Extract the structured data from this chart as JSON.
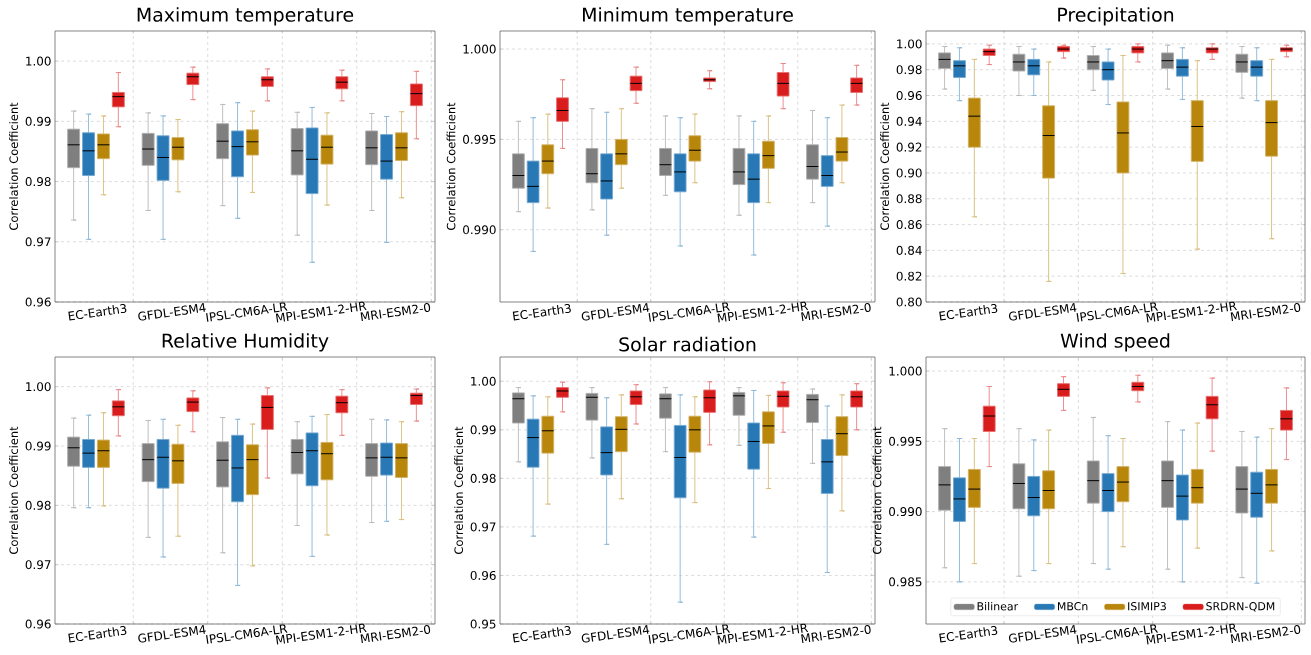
{
  "chart_data": [
    {
      "type": "box",
      "title": "Maximum temperature",
      "ylabel": "Correlation Coefficient",
      "categories": [
        "EC-Earth3",
        "GFDL-ESM4",
        "IPSL-CM6A-LR",
        "MPI-ESM1-2-HR",
        "MRI-ESM2-0"
      ],
      "ylim": [
        0.96,
        1.005
      ],
      "yticks": [
        0.96,
        0.97,
        0.98,
        0.99,
        {
          "value": 1.0,
          "label": "1.00"
        }
      ],
      "grid": true,
      "series": [
        {
          "color": "#7f7f7f",
          "boxes": [
            {
              "low": 0.9736,
              "q1": 0.9823,
              "median": 0.9861,
              "q3": 0.9887,
              "high": 0.9917
            },
            {
              "low": 0.9752,
              "q1": 0.9827,
              "median": 0.9854,
              "q3": 0.988,
              "high": 0.9914
            },
            {
              "low": 0.976,
              "q1": 0.9838,
              "median": 0.9867,
              "q3": 0.9896,
              "high": 0.9928
            },
            {
              "low": 0.9711,
              "q1": 0.9811,
              "median": 0.9851,
              "q3": 0.9888,
              "high": 0.9915
            },
            {
              "low": 0.9752,
              "q1": 0.9828,
              "median": 0.9856,
              "q3": 0.9884,
              "high": 0.9913
            }
          ]
        },
        {
          "color": "#2878b5",
          "boxes": [
            {
              "low": 0.9704,
              "q1": 0.981,
              "median": 0.9851,
              "q3": 0.9881,
              "high": 0.9912
            },
            {
              "low": 0.9704,
              "q1": 0.9802,
              "median": 0.984,
              "q3": 0.9876,
              "high": 0.9909
            },
            {
              "low": 0.9739,
              "q1": 0.9808,
              "median": 0.9858,
              "q3": 0.9884,
              "high": 0.9931
            },
            {
              "low": 0.9666,
              "q1": 0.978,
              "median": 0.9837,
              "q3": 0.9889,
              "high": 0.9923
            },
            {
              "low": 0.9699,
              "q1": 0.9804,
              "median": 0.9834,
              "q3": 0.9878,
              "high": 0.9908
            }
          ]
        },
        {
          "color": "#b8860b",
          "boxes": [
            {
              "low": 0.9778,
              "q1": 0.9838,
              "median": 0.9861,
              "q3": 0.9879,
              "high": 0.9909
            },
            {
              "low": 0.9783,
              "q1": 0.9836,
              "median": 0.9857,
              "q3": 0.9873,
              "high": 0.9903
            },
            {
              "low": 0.9782,
              "q1": 0.9844,
              "median": 0.9866,
              "q3": 0.9886,
              "high": 0.9917
            },
            {
              "low": 0.9761,
              "q1": 0.9829,
              "median": 0.9857,
              "q3": 0.9877,
              "high": 0.9914
            },
            {
              "low": 0.9773,
              "q1": 0.9835,
              "median": 0.9856,
              "q3": 0.9881,
              "high": 0.9916
            }
          ]
        },
        {
          "color": "#d91c1c",
          "boxes": [
            {
              "low": 0.9891,
              "q1": 0.9924,
              "median": 0.9941,
              "q3": 0.9948,
              "high": 0.9981
            },
            {
              "low": 0.9936,
              "q1": 0.9961,
              "median": 0.9974,
              "q3": 0.998,
              "high": 0.999
            },
            {
              "low": 0.9934,
              "q1": 0.9958,
              "median": 0.9969,
              "q3": 0.9974,
              "high": 0.9987
            },
            {
              "low": 0.9934,
              "q1": 0.9954,
              "median": 0.9965,
              "q3": 0.9974,
              "high": 0.9985
            },
            {
              "low": 0.9871,
              "q1": 0.9926,
              "median": 0.9946,
              "q3": 0.9962,
              "high": 0.9983
            }
          ]
        }
      ]
    },
    {
      "type": "box",
      "title": "Minimum temperature",
      "ylabel": "Correlation Coefficient",
      "categories": [
        "EC-Earth3",
        "GFDL-ESM4",
        "IPSL-CM6A-LR",
        "MPI-ESM1-2-HR",
        "MRI-ESM2-0"
      ],
      "ylim": [
        0.986,
        1.001
      ],
      "yticks": [
        {
          "value": 0.99,
          "label": "0.990"
        },
        0.995,
        {
          "value": 1.0,
          "label": "1.000"
        }
      ],
      "grid": true,
      "series": [
        {
          "color": "#7f7f7f",
          "boxes": [
            {
              "low": 0.991,
              "q1": 0.9923,
              "median": 0.993,
              "q3": 0.9942,
              "high": 0.996
            },
            {
              "low": 0.9911,
              "q1": 0.9926,
              "median": 0.9931,
              "q3": 0.9945,
              "high": 0.9967
            },
            {
              "low": 0.9919,
              "q1": 0.993,
              "median": 0.9936,
              "q3": 0.9945,
              "high": 0.9963
            },
            {
              "low": 0.9908,
              "q1": 0.9925,
              "median": 0.9932,
              "q3": 0.9945,
              "high": 0.9963
            },
            {
              "low": 0.9915,
              "q1": 0.9928,
              "median": 0.9935,
              "q3": 0.9947,
              "high": 0.9966
            }
          ]
        },
        {
          "color": "#2878b5",
          "boxes": [
            {
              "low": 0.9888,
              "q1": 0.9915,
              "median": 0.9924,
              "q3": 0.9938,
              "high": 0.9962
            },
            {
              "low": 0.9897,
              "q1": 0.9917,
              "median": 0.9927,
              "q3": 0.9942,
              "high": 0.9965
            },
            {
              "low": 0.9891,
              "q1": 0.9921,
              "median": 0.9932,
              "q3": 0.9942,
              "high": 0.9962
            },
            {
              "low": 0.9886,
              "q1": 0.9915,
              "median": 0.9928,
              "q3": 0.9942,
              "high": 0.996
            },
            {
              "low": 0.9902,
              "q1": 0.9924,
              "median": 0.993,
              "q3": 0.9941,
              "high": 0.9962
            }
          ]
        },
        {
          "color": "#b8860b",
          "boxes": [
            {
              "low": 0.9912,
              "q1": 0.9931,
              "median": 0.9938,
              "q3": 0.9947,
              "high": 0.9964
            },
            {
              "low": 0.9923,
              "q1": 0.9936,
              "median": 0.9942,
              "q3": 0.995,
              "high": 0.9967
            },
            {
              "low": 0.9926,
              "q1": 0.9938,
              "median": 0.9944,
              "q3": 0.9952,
              "high": 0.9964
            },
            {
              "low": 0.9915,
              "q1": 0.9934,
              "median": 0.9941,
              "q3": 0.9949,
              "high": 0.9963
            },
            {
              "low": 0.9926,
              "q1": 0.9938,
              "median": 0.9943,
              "q3": 0.9951,
              "high": 0.9969
            }
          ]
        },
        {
          "color": "#d91c1c",
          "boxes": [
            {
              "low": 0.9945,
              "q1": 0.996,
              "median": 0.9966,
              "q3": 0.9973,
              "high": 0.9983
            },
            {
              "low": 0.997,
              "q1": 0.9977,
              "median": 0.9981,
              "q3": 0.9985,
              "high": 0.999
            },
            {
              "low": 0.9978,
              "q1": 0.9982,
              "median": 0.9983,
              "q3": 0.9984,
              "high": 0.9988
            },
            {
              "low": 0.9967,
              "q1": 0.9974,
              "median": 0.9981,
              "q3": 0.9987,
              "high": 0.9992
            },
            {
              "low": 0.9969,
              "q1": 0.9976,
              "median": 0.9981,
              "q3": 0.9984,
              "high": 0.9991
            }
          ]
        }
      ]
    },
    {
      "type": "box",
      "title": "Precipitation",
      "ylabel": "Correlation Coefficient",
      "categories": [
        "EC-Earth3",
        "GFDL-ESM4",
        "IPSL-CM6A-LR",
        "MPI-ESM1-2-HR",
        "MRI-ESM2-0"
      ],
      "ylim": [
        0.8,
        1.01
      ],
      "yticks": [
        {
          "value": 0.8,
          "label": "0.80"
        },
        0.82,
        0.84,
        0.86,
        0.88,
        {
          "value": 0.9,
          "label": "0.90"
        },
        0.92,
        0.94,
        0.96,
        0.98,
        {
          "value": 1.0,
          "label": "1.00"
        }
      ],
      "grid": true,
      "series": [
        {
          "color": "#7f7f7f",
          "boxes": [
            {
              "low": 0.965,
              "q1": 0.981,
              "median": 0.988,
              "q3": 0.993,
              "high": 0.998
            },
            {
              "low": 0.96,
              "q1": 0.979,
              "median": 0.986,
              "q3": 0.992,
              "high": 0.998
            },
            {
              "low": 0.964,
              "q1": 0.98,
              "median": 0.986,
              "q3": 0.991,
              "high": 0.998
            },
            {
              "low": 0.965,
              "q1": 0.981,
              "median": 0.987,
              "q3": 0.993,
              "high": 0.999
            },
            {
              "low": 0.958,
              "q1": 0.978,
              "median": 0.986,
              "q3": 0.992,
              "high": 0.998
            }
          ]
        },
        {
          "color": "#2878b5",
          "boxes": [
            {
              "low": 0.956,
              "q1": 0.974,
              "median": 0.983,
              "q3": 0.987,
              "high": 0.997
            },
            {
              "low": 0.96,
              "q1": 0.976,
              "median": 0.983,
              "q3": 0.988,
              "high": 0.996
            },
            {
              "low": 0.953,
              "q1": 0.972,
              "median": 0.98,
              "q3": 0.986,
              "high": 0.996
            },
            {
              "low": 0.957,
              "q1": 0.975,
              "median": 0.982,
              "q3": 0.988,
              "high": 0.997
            },
            {
              "low": 0.956,
              "q1": 0.975,
              "median": 0.982,
              "q3": 0.987,
              "high": 0.997
            }
          ]
        },
        {
          "color": "#b8860b",
          "boxes": [
            {
              "low": 0.866,
              "q1": 0.92,
              "median": 0.944,
              "q3": 0.958,
              "high": 0.988
            },
            {
              "low": 0.816,
              "q1": 0.896,
              "median": 0.929,
              "q3": 0.952,
              "high": 0.986
            },
            {
              "low": 0.822,
              "q1": 0.9,
              "median": 0.931,
              "q3": 0.955,
              "high": 0.991
            },
            {
              "low": 0.841,
              "q1": 0.909,
              "median": 0.936,
              "q3": 0.956,
              "high": 0.987
            },
            {
              "low": 0.849,
              "q1": 0.913,
              "median": 0.939,
              "q3": 0.956,
              "high": 0.988
            }
          ]
        },
        {
          "color": "#d91c1c",
          "boxes": [
            {
              "low": 0.984,
              "q1": 0.991,
              "median": 0.994,
              "q3": 0.996,
              "high": 0.999
            },
            {
              "low": 0.989,
              "q1": 0.994,
              "median": 0.996,
              "q3": 0.998,
              "high": 0.999
            },
            {
              "low": 0.986,
              "q1": 0.993,
              "median": 0.996,
              "q3": 0.998,
              "high": 1.0
            },
            {
              "low": 0.988,
              "q1": 0.993,
              "median": 0.996,
              "q3": 0.997,
              "high": 1.0
            },
            {
              "low": 0.99,
              "q1": 0.994,
              "median": 0.996,
              "q3": 0.997,
              "high": 0.999
            }
          ]
        }
      ]
    },
    {
      "type": "box",
      "title": "Relative Humidity",
      "ylabel": "Correlation Coefficient",
      "categories": [
        "EC-Earth3",
        "GFDL-ESM4",
        "IPSL-CM6A-LR",
        "MPI-ESM1-2-HR",
        "MRI-ESM2-0"
      ],
      "ylim": [
        0.96,
        1.005
      ],
      "yticks": [
        0.96,
        0.97,
        0.98,
        0.99,
        {
          "value": 1.0,
          "label": "1.00"
        }
      ],
      "grid": true,
      "series": [
        {
          "color": "#7f7f7f",
          "boxes": [
            {
              "low": 0.9796,
              "q1": 0.9866,
              "median": 0.9897,
              "q3": 0.9915,
              "high": 0.9947
            },
            {
              "low": 0.9746,
              "q1": 0.984,
              "median": 0.9877,
              "q3": 0.9904,
              "high": 0.9943
            },
            {
              "low": 0.972,
              "q1": 0.9831,
              "median": 0.9876,
              "q3": 0.9907,
              "high": 0.9948
            },
            {
              "low": 0.9766,
              "q1": 0.9853,
              "median": 0.9889,
              "q3": 0.9911,
              "high": 0.9941
            },
            {
              "low": 0.9771,
              "q1": 0.9849,
              "median": 0.988,
              "q3": 0.9904,
              "high": 0.9945
            }
          ]
        },
        {
          "color": "#2878b5",
          "boxes": [
            {
              "low": 0.9796,
              "q1": 0.9864,
              "median": 0.9888,
              "q3": 0.9911,
              "high": 0.9952
            },
            {
              "low": 0.9713,
              "q1": 0.9829,
              "median": 0.9881,
              "q3": 0.9911,
              "high": 0.9945
            },
            {
              "low": 0.9665,
              "q1": 0.9806,
              "median": 0.9863,
              "q3": 0.9918,
              "high": 0.9945
            },
            {
              "low": 0.9714,
              "q1": 0.9833,
              "median": 0.9892,
              "q3": 0.9922,
              "high": 0.995
            },
            {
              "low": 0.9773,
              "q1": 0.9851,
              "median": 0.9881,
              "q3": 0.9905,
              "high": 0.9944
            }
          ]
        },
        {
          "color": "#b8860b",
          "boxes": [
            {
              "low": 0.9799,
              "q1": 0.9864,
              "median": 0.9892,
              "q3": 0.991,
              "high": 0.9956
            },
            {
              "low": 0.9748,
              "q1": 0.9837,
              "median": 0.9875,
              "q3": 0.9903,
              "high": 0.9935
            },
            {
              "low": 0.9698,
              "q1": 0.9818,
              "median": 0.9877,
              "q3": 0.9902,
              "high": 0.9937
            },
            {
              "low": 0.975,
              "q1": 0.9843,
              "median": 0.9887,
              "q3": 0.9906,
              "high": 0.9953
            },
            {
              "low": 0.9776,
              "q1": 0.9847,
              "median": 0.988,
              "q3": 0.9904,
              "high": 0.9941
            }
          ]
        },
        {
          "color": "#d91c1c",
          "boxes": [
            {
              "low": 0.9917,
              "q1": 0.9951,
              "median": 0.9966,
              "q3": 0.9976,
              "high": 0.9995
            },
            {
              "low": 0.9924,
              "q1": 0.9958,
              "median": 0.9974,
              "q3": 0.9981,
              "high": 0.9993
            },
            {
              "low": 0.9846,
              "q1": 0.9928,
              "median": 0.9965,
              "q3": 0.9985,
              "high": 0.9998
            },
            {
              "low": 0.9918,
              "q1": 0.9956,
              "median": 0.9973,
              "q3": 0.9984,
              "high": 0.9995
            },
            {
              "low": 0.9942,
              "q1": 0.997,
              "median": 0.9985,
              "q3": 0.9989,
              "high": 0.9996
            }
          ]
        }
      ]
    },
    {
      "type": "box",
      "title": "Solar radiation",
      "ylabel": "Correlation Coefficient",
      "categories": [
        "EC-Earth3",
        "GFDL-ESM4",
        "IPSL-CM6A-LR",
        "MPI-ESM1-2-HR",
        "MRI-ESM2-0"
      ],
      "ylim": [
        0.95,
        1.005
      ],
      "yticks": [
        0.95,
        0.96,
        0.97,
        0.98,
        0.99,
        {
          "value": 1.0,
          "label": "1.00"
        }
      ],
      "grid": true,
      "series": [
        {
          "color": "#7f7f7f",
          "boxes": [
            {
              "low": 0.9834,
              "q1": 0.9914,
              "median": 0.9964,
              "q3": 0.9976,
              "high": 0.9987
            },
            {
              "low": 0.9842,
              "q1": 0.992,
              "median": 0.9967,
              "q3": 0.9975,
              "high": 0.9987
            },
            {
              "low": 0.9855,
              "q1": 0.9924,
              "median": 0.9964,
              "q3": 0.9974,
              "high": 0.9987
            },
            {
              "low": 0.9868,
              "q1": 0.993,
              "median": 0.997,
              "q3": 0.9977,
              "high": 0.9987
            },
            {
              "low": 0.9831,
              "q1": 0.9915,
              "median": 0.9962,
              "q3": 0.9973,
              "high": 0.9984
            }
          ]
        },
        {
          "color": "#2878b5",
          "boxes": [
            {
              "low": 0.9681,
              "q1": 0.9823,
              "median": 0.9884,
              "q3": 0.9922,
              "high": 0.997
            },
            {
              "low": 0.9664,
              "q1": 0.9807,
              "median": 0.9853,
              "q3": 0.9906,
              "high": 0.9966
            },
            {
              "low": 0.9545,
              "q1": 0.976,
              "median": 0.9843,
              "q3": 0.9909,
              "high": 0.9972
            },
            {
              "low": 0.9679,
              "q1": 0.9819,
              "median": 0.9876,
              "q3": 0.9914,
              "high": 0.9981
            },
            {
              "low": 0.9606,
              "q1": 0.9769,
              "median": 0.9834,
              "q3": 0.988,
              "high": 0.9949
            }
          ]
        },
        {
          "color": "#b8860b",
          "boxes": [
            {
              "low": 0.9747,
              "q1": 0.9852,
              "median": 0.9898,
              "q3": 0.9928,
              "high": 0.9968
            },
            {
              "low": 0.9758,
              "q1": 0.9855,
              "median": 0.9901,
              "q3": 0.9927,
              "high": 0.9972
            },
            {
              "low": 0.975,
              "q1": 0.9854,
              "median": 0.99,
              "q3": 0.9928,
              "high": 0.9968
            },
            {
              "low": 0.9779,
              "q1": 0.9872,
              "median": 0.9908,
              "q3": 0.9937,
              "high": 0.9971
            },
            {
              "low": 0.9733,
              "q1": 0.9847,
              "median": 0.9892,
              "q3": 0.9927,
              "high": 0.9972
            }
          ]
        },
        {
          "color": "#d91c1c",
          "boxes": [
            {
              "low": 0.9937,
              "q1": 0.9967,
              "median": 0.998,
              "q3": 0.9987,
              "high": 0.9998
            },
            {
              "low": 0.9912,
              "q1": 0.9952,
              "median": 0.9968,
              "q3": 0.998,
              "high": 0.9993
            },
            {
              "low": 0.9869,
              "q1": 0.9936,
              "median": 0.9966,
              "q3": 0.9982,
              "high": 0.9999
            },
            {
              "low": 0.9895,
              "q1": 0.9947,
              "median": 0.9969,
              "q3": 0.998,
              "high": 0.9997
            },
            {
              "low": 0.99,
              "q1": 0.9947,
              "median": 0.9968,
              "q3": 0.998,
              "high": 0.9995
            }
          ]
        }
      ]
    },
    {
      "type": "box",
      "title": "Wind speed",
      "ylabel": "Correlation Coefficient",
      "categories": [
        "EC-Earth3",
        "GFDL-ESM4",
        "IPSL-CM6A-LR",
        "MPI-ESM1-2-HR",
        "MRI-ESM2-0"
      ],
      "ylim": [
        0.982,
        1.001
      ],
      "yticks": [
        0.985,
        {
          "value": 0.99,
          "label": "0.990"
        },
        0.995,
        {
          "value": 1.0,
          "label": "1.000"
        }
      ],
      "grid": true,
      "legend": "bottom",
      "series": [
        {
          "name": "Bilinear",
          "color": "#7f7f7f",
          "boxes": [
            {
              "low": 0.986,
              "q1": 0.9901,
              "median": 0.9919,
              "q3": 0.9932,
              "high": 0.9959
            },
            {
              "low": 0.9854,
              "q1": 0.9902,
              "median": 0.992,
              "q3": 0.9934,
              "high": 0.9959
            },
            {
              "low": 0.9863,
              "q1": 0.9906,
              "median": 0.9922,
              "q3": 0.9936,
              "high": 0.9967
            },
            {
              "low": 0.9859,
              "q1": 0.9903,
              "median": 0.9922,
              "q3": 0.9936,
              "high": 0.9964
            },
            {
              "low": 0.9853,
              "q1": 0.9899,
              "median": 0.9916,
              "q3": 0.9932,
              "high": 0.9957
            }
          ]
        },
        {
          "name": "MBCn",
          "color": "#2878b5",
          "boxes": [
            {
              "low": 0.985,
              "q1": 0.9893,
              "median": 0.9909,
              "q3": 0.9924,
              "high": 0.9952
            },
            {
              "low": 0.9858,
              "q1": 0.9897,
              "median": 0.991,
              "q3": 0.9925,
              "high": 0.9951
            },
            {
              "low": 0.9859,
              "q1": 0.99,
              "median": 0.9915,
              "q3": 0.9927,
              "high": 0.9954
            },
            {
              "low": 0.985,
              "q1": 0.9894,
              "median": 0.9911,
              "q3": 0.9926,
              "high": 0.9958
            },
            {
              "low": 0.9849,
              "q1": 0.9896,
              "median": 0.9913,
              "q3": 0.9928,
              "high": 0.9953
            }
          ]
        },
        {
          "name": "ISIMIP3",
          "color": "#b8860b",
          "boxes": [
            {
              "low": 0.9863,
              "q1": 0.9903,
              "median": 0.9916,
              "q3": 0.993,
              "high": 0.9952
            },
            {
              "low": 0.9863,
              "q1": 0.9902,
              "median": 0.9915,
              "q3": 0.9929,
              "high": 0.9958
            },
            {
              "low": 0.9875,
              "q1": 0.9907,
              "median": 0.9921,
              "q3": 0.9932,
              "high": 0.9952
            },
            {
              "low": 0.9874,
              "q1": 0.9906,
              "median": 0.9917,
              "q3": 0.993,
              "high": 0.9963
            },
            {
              "low": 0.9872,
              "q1": 0.9906,
              "median": 0.9919,
              "q3": 0.993,
              "high": 0.9959
            }
          ]
        },
        {
          "name": "SRDRN-QDM",
          "color": "#d91c1c",
          "boxes": [
            {
              "low": 0.9932,
              "q1": 0.9957,
              "median": 0.9968,
              "q3": 0.9975,
              "high": 0.9989
            },
            {
              "low": 0.9972,
              "q1": 0.9982,
              "median": 0.9987,
              "q3": 0.9991,
              "high": 0.9996
            },
            {
              "low": 0.9978,
              "q1": 0.9986,
              "median": 0.9989,
              "q3": 0.9992,
              "high": 0.9997
            },
            {
              "low": 0.9943,
              "q1": 0.9966,
              "median": 0.9976,
              "q3": 0.9982,
              "high": 0.9995
            },
            {
              "low": 0.9937,
              "q1": 0.9958,
              "median": 0.9966,
              "q3": 0.9972,
              "high": 0.9988
            }
          ]
        }
      ]
    }
  ]
}
